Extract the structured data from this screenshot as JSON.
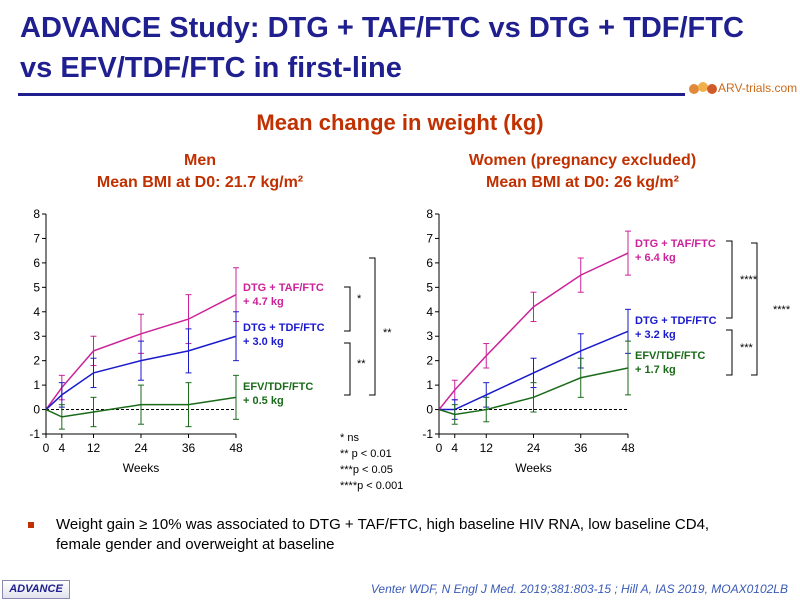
{
  "slide": {
    "title_line1": "ADVANCE Study: DTG + TAF/FTC vs DTG + TDF/FTC",
    "title_line2": "vs EFV/TDF/FTC in first-line",
    "logo_text": "ARV-trials.com",
    "subtitle": "Mean change in weight (kg)",
    "bullet": "Weight gain ≥ 10% was associated to DTG + TAF/FTC, high baseline HIV RNA, low baseline CD4, female gender and overweight at baseline",
    "badge": "ADVANCE",
    "citation": "Venter WDF, N Engl J Med. 2019;381:803-15 ; Hill A, IAS 2019, MOAX0102LB",
    "significance_notes": [
      "* ns",
      "** p < 0.01",
      "***p < 0.05",
      "****p < 0.001"
    ]
  },
  "colors": {
    "title": "#1f1f8f",
    "accent": "#c03000",
    "taf": "#cc2299",
    "tdf": "#1a1acc",
    "efv": "#1a6a1a"
  },
  "chart_data": [
    {
      "type": "line",
      "title_line1": "Men",
      "title_line2": "Mean BMI at D0: 21.7 kg/m²",
      "xlabel": "Weeks",
      "x": [
        0,
        4,
        12,
        24,
        36,
        48
      ],
      "xticks": [
        "0",
        "4",
        "12",
        "24",
        "36",
        "48"
      ],
      "ylim": [
        -1,
        8
      ],
      "yticks": [
        "8",
        "7",
        "6",
        "5",
        "4",
        "3",
        "2",
        "1",
        "0",
        "-1"
      ],
      "reference_line": 0,
      "series": [
        {
          "label1": "DTG + TAF/FTC",
          "label2": "+ 4.7 kg",
          "color": "#cc2299",
          "values": [
            0,
            0.9,
            2.4,
            3.1,
            3.7,
            4.7
          ],
          "err": [
            0,
            0.5,
            0.6,
            0.8,
            1.0,
            1.1
          ]
        },
        {
          "label1": "DTG + TDF/FTC",
          "label2": "+ 3.0 kg",
          "color": "#1a1acc",
          "values": [
            0,
            0.6,
            1.5,
            2.0,
            2.4,
            3.0
          ],
          "err": [
            0,
            0.5,
            0.6,
            0.8,
            0.9,
            1.0
          ]
        },
        {
          "label1": "EFV/TDF/FTC",
          "label2": "+ 0.5 kg",
          "color": "#1a6a1a",
          "values": [
            0,
            -0.3,
            -0.1,
            0.2,
            0.2,
            0.5
          ],
          "err": [
            0,
            0.5,
            0.6,
            0.8,
            0.9,
            0.9
          ]
        }
      ],
      "brackets": [
        {
          "label": "*"
        },
        {
          "label": "**"
        },
        {
          "label": "**"
        }
      ]
    },
    {
      "type": "line",
      "title_line1": "Women (pregnancy excluded)",
      "title_line2": "Mean BMI at D0: 26 kg/m²",
      "xlabel": "Weeks",
      "x": [
        0,
        4,
        12,
        24,
        36,
        48
      ],
      "xticks": [
        "0",
        "4",
        "12",
        "24",
        "36",
        "48"
      ],
      "ylim": [
        -1,
        8
      ],
      "yticks": [
        "8",
        "7",
        "6",
        "5",
        "4",
        "3",
        "2",
        "1",
        "0",
        "-1"
      ],
      "reference_line": 0,
      "series": [
        {
          "label1": "DTG + TAF/FTC",
          "label2": "+ 6.4 kg",
          "color": "#cc2299",
          "values": [
            0,
            0.8,
            2.2,
            4.2,
            5.5,
            6.4
          ],
          "err": [
            0,
            0.4,
            0.5,
            0.6,
            0.7,
            0.9
          ]
        },
        {
          "label1": "DTG + TDF/FTC",
          "label2": "+ 3.2 kg",
          "color": "#1a1acc",
          "values": [
            0,
            0.0,
            0.6,
            1.5,
            2.4,
            3.2
          ],
          "err": [
            0,
            0.4,
            0.5,
            0.6,
            0.7,
            0.9
          ]
        },
        {
          "label1": "EFV/TDF/FTC",
          "label2": "+ 1.7 kg",
          "color": "#1a6a1a",
          "values": [
            0,
            -0.2,
            0.0,
            0.5,
            1.3,
            1.7
          ],
          "err": [
            0,
            0.4,
            0.5,
            0.6,
            0.8,
            1.1
          ]
        }
      ],
      "brackets": [
        {
          "label": "****"
        },
        {
          "label": "***"
        },
        {
          "label": "****"
        }
      ]
    }
  ]
}
